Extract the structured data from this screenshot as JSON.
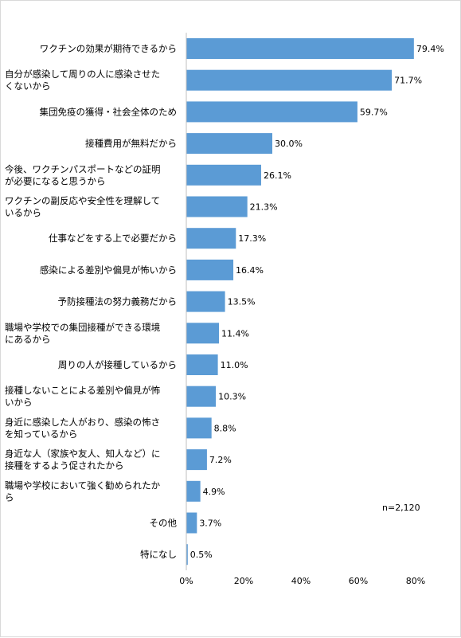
{
  "chart_data": {
    "type": "bar",
    "orientation": "horizontal",
    "title": "",
    "xlabel": "",
    "ylabel": "",
    "categories": [
      [
        "ワクチンの効果が期待できるから"
      ],
      [
        "自分が感染して周りの人に感染させた",
        "くないから"
      ],
      [
        "集団免疫の獲得・社会全体のため"
      ],
      [
        "接種費用が無料だから"
      ],
      [
        "今後、ワクチンパスポートなどの証明",
        "が必要になると思うから"
      ],
      [
        "ワクチンの副反応や安全性を理解して",
        "いるから"
      ],
      [
        "仕事などをする上で必要だから"
      ],
      [
        "感染による差別や偏見が怖いから"
      ],
      [
        "予防接種法の努力義務だから"
      ],
      [
        "職場や学校での集団接種ができる環境",
        "にあるから"
      ],
      [
        "周りの人が接種しているから"
      ],
      [
        "接種しないことによる差別や偏見が怖",
        "いから"
      ],
      [
        "身近に感染した人がおり、感染の怖さ",
        "を知っているから"
      ],
      [
        "身近な人（家族や友人、知人など）に",
        "接種をするよう促されたから"
      ],
      [
        "職場や学校において強く勧められたか",
        "ら"
      ],
      [
        "その他"
      ],
      [
        "特になし"
      ]
    ],
    "values": [
      79.4,
      71.7,
      59.7,
      30.0,
      26.1,
      21.3,
      17.3,
      16.4,
      13.5,
      11.4,
      11.0,
      10.3,
      8.8,
      7.2,
      4.9,
      3.7,
      0.5
    ],
    "value_labels": [
      "79.4%",
      "71.7%",
      "59.7%",
      "30.0%",
      "26.1%",
      "21.3%",
      "17.3%",
      "16.4%",
      "13.5%",
      "11.4%",
      "11.0%",
      "10.3%",
      "8.8%",
      "7.2%",
      "4.9%",
      "3.7%",
      "0.5%"
    ],
    "xlim": [
      0,
      80
    ],
    "xticks": [
      0,
      20,
      40,
      60,
      80
    ],
    "xtick_labels": [
      "0%",
      "20%",
      "40%",
      "60%",
      "80%"
    ],
    "grid": false,
    "legend": "none",
    "bar_color": "#5b9bd5",
    "axis_color": "#bfbfbf",
    "note": "n=2,120"
  }
}
